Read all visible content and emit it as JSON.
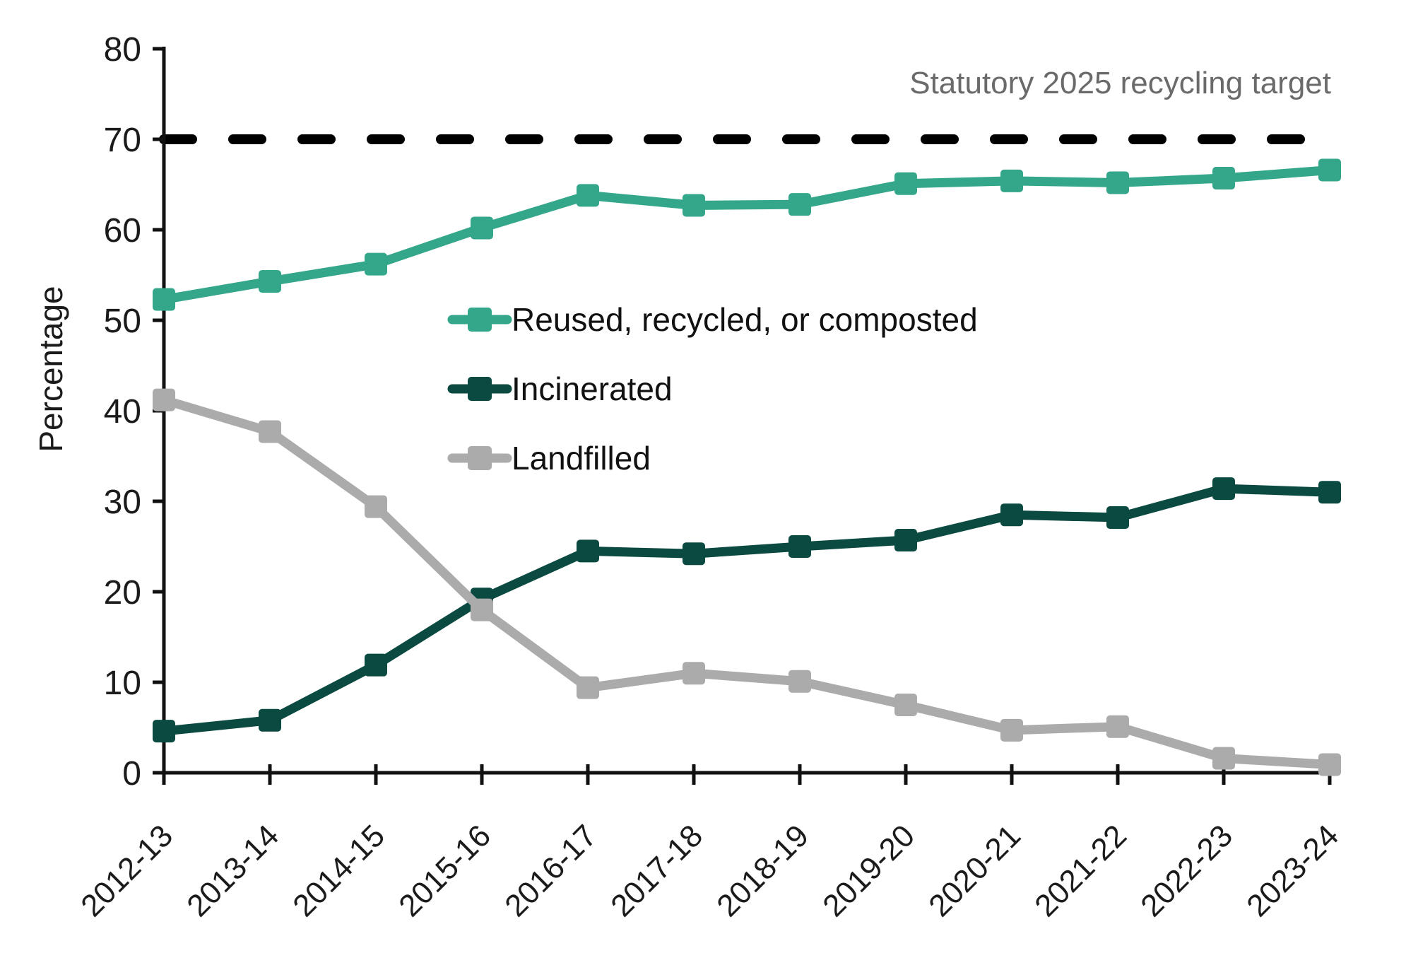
{
  "chart_data": {
    "type": "line",
    "title": "",
    "xlabel": "",
    "ylabel": "Percentage",
    "ylim": [
      0,
      80
    ],
    "ytick_step": 10,
    "grid": false,
    "legend_position": "inside-center-left",
    "categories": [
      "2012-13",
      "2013-14",
      "2014-15",
      "2015-16",
      "2016-17",
      "2017-18",
      "2018-19",
      "2019-20",
      "2020-21",
      "2021-22",
      "2022-23",
      "2023-24"
    ],
    "series": [
      {
        "name": "Reused, recycled, or composted",
        "color": "#34a78a",
        "marker": "square",
        "values": [
          52.3,
          54.3,
          56.2,
          60.2,
          63.8,
          62.7,
          62.8,
          65.1,
          65.4,
          65.2,
          65.7,
          66.6
        ]
      },
      {
        "name": "Incinerated",
        "color": "#0b4a41",
        "marker": "square",
        "values": [
          4.6,
          5.8,
          11.9,
          19.2,
          24.5,
          24.2,
          25.0,
          25.7,
          28.5,
          28.2,
          31.4,
          31.0
        ]
      },
      {
        "name": "Landfilled",
        "color": "#ababab",
        "marker": "square",
        "values": [
          41.2,
          37.7,
          29.4,
          18.0,
          9.4,
          11.0,
          10.1,
          7.5,
          4.7,
          5.1,
          1.6,
          0.9
        ]
      }
    ],
    "target_line": {
      "value": 70,
      "label": "Statutory 2025 recycling target",
      "line_color": "#000000",
      "label_color": "#6a6a6a",
      "style": "dashed"
    },
    "axis_color": "#111111",
    "text_color": "#1b1b1b"
  }
}
